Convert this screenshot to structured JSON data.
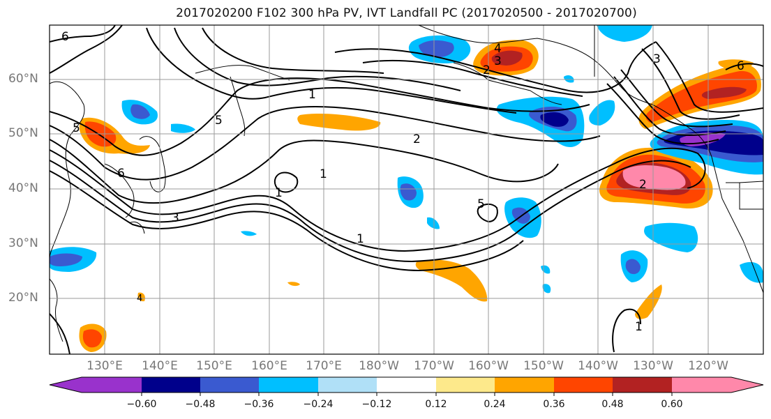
{
  "title": "2017020200 F102 300 hPa PV, IVT Landfall PC (2017020500 - 2017020700)",
  "map": {
    "lat_labels": [
      "60°N",
      "50°N",
      "40°N",
      "30°N",
      "20°N"
    ],
    "lon_labels": [
      "130°E",
      "140°E",
      "150°E",
      "160°E",
      "170°E",
      "180°W",
      "170°W",
      "160°W",
      "150°W",
      "140°W",
      "130°W",
      "120°W"
    ],
    "contour_labels": [
      "6",
      "1",
      "5",
      "2",
      "3",
      "4",
      "6",
      "2",
      "5",
      "1",
      "5",
      "1",
      "3",
      "1",
      "2",
      "3",
      "6",
      "1",
      "4"
    ]
  },
  "colorbar": {
    "ticks": [
      "−0.60",
      "−0.48",
      "−0.36",
      "−0.24",
      "−0.12",
      "0.12",
      "0.24",
      "0.36",
      "0.48",
      "0.60"
    ],
    "colors": [
      "#9932cc",
      "#00008b",
      "#3a5ad0",
      "#00bfff",
      "#b0e0f7",
      "#ffffff",
      "#fde98b",
      "#ffa500",
      "#ff4500",
      "#b22222",
      "#ff88aa",
      "#ff88aa"
    ]
  }
}
